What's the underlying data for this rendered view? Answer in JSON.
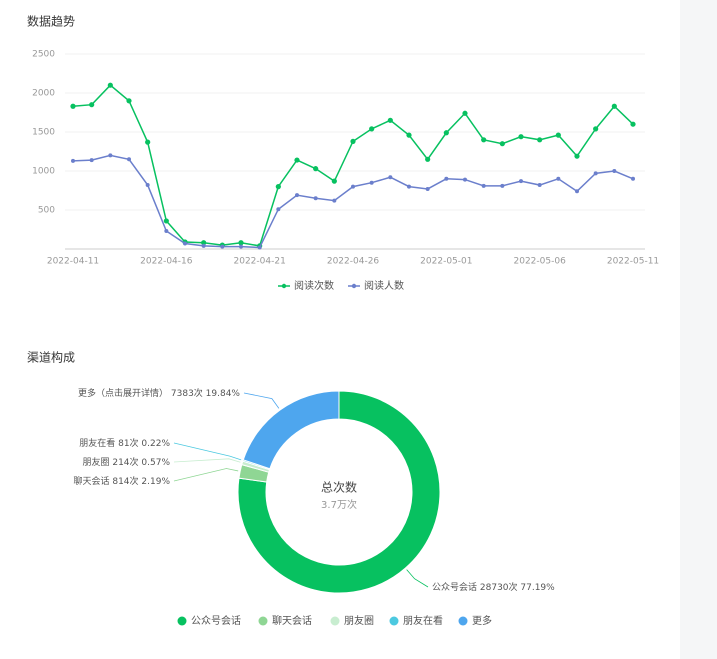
{
  "chart_data": [
    {
      "type": "line",
      "title": "数据趋势",
      "categories": [
        "2022-04-11",
        null,
        null,
        null,
        null,
        "2022-04-16",
        null,
        null,
        null,
        null,
        "2022-04-21",
        null,
        null,
        null,
        null,
        "2022-04-26",
        null,
        null,
        null,
        null,
        "2022-05-01",
        null,
        null,
        null,
        null,
        "2022-05-06",
        null,
        null,
        null,
        null,
        "2022-05-11"
      ],
      "series": [
        {
          "name": "阅读次数",
          "color": "#07c160",
          "values": [
            1830,
            1850,
            2100,
            1900,
            1370,
            360,
            90,
            80,
            50,
            80,
            40,
            800,
            1140,
            1030,
            870,
            1380,
            1540,
            1650,
            1460,
            1150,
            1490,
            1740,
            1400,
            1350,
            1440,
            1400,
            1460,
            1190,
            1540,
            1830,
            1600
          ]
        },
        {
          "name": "阅读人数",
          "color": "#6b7fcc",
          "values": [
            1130,
            1140,
            1200,
            1150,
            820,
            230,
            70,
            40,
            30,
            30,
            20,
            510,
            690,
            650,
            620,
            800,
            850,
            920,
            800,
            770,
            900,
            890,
            810,
            810,
            870,
            820,
            900,
            740,
            970,
            1000,
            900
          ]
        }
      ],
      "ylim": [
        0,
        2500
      ],
      "yticks": [
        500,
        1000,
        1500,
        2000,
        2500
      ],
      "grid": true,
      "legend": "bottom"
    },
    {
      "type": "donut",
      "title": "渠道构成",
      "categories": [
        "公众号会话",
        "聊天会话",
        "朋友圈",
        "朋友在看",
        "更多（点击展开详情）"
      ],
      "legend_names": [
        "公众号会话",
        "聊天会话",
        "朋友圈",
        "朋友在看",
        "更多"
      ],
      "values": [
        28730,
        814,
        214,
        81,
        7383
      ],
      "value_labels": [
        "28730次 77.19%",
        "814次 2.19%",
        "214次 0.57%",
        "81次 0.22%",
        "7383次 19.84%"
      ],
      "colors": [
        "#07c160",
        "#8fd694",
        "#c8edd0",
        "#4cc9e0",
        "#4ea6ee"
      ],
      "center_label": "总次数",
      "center_value": "3.7万次",
      "legend": "bottom"
    }
  ]
}
